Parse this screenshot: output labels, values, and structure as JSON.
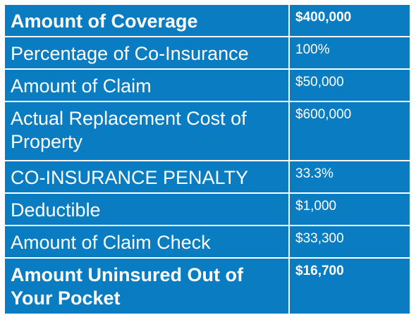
{
  "rows": [
    {
      "label": "Amount of Coverage",
      "value": "$400,000",
      "bold": true
    },
    {
      "label": "Percentage of Co-Insurance",
      "value": "100%",
      "bold": false
    },
    {
      "label": "Amount of Claim",
      "value": "$50,000",
      "bold": false
    },
    {
      "label": "Actual Replacement Cost of Property",
      "value": "$600,000",
      "bold": false
    },
    {
      "label": "CO-INSURANCE PENALTY",
      "value": "33.3%",
      "bold": false
    },
    {
      "label": "Deductible",
      "value": "$1,000",
      "bold": false
    },
    {
      "label": "Amount of Claim Check",
      "value": "$33,300",
      "bold": false
    },
    {
      "label": "Amount Uninsured Out of Your Pocket",
      "value": "$16,700",
      "bold": true
    }
  ],
  "colors": {
    "cell_background": "#0a7dc2",
    "text": "#ffffff",
    "border": "#ffffff"
  }
}
